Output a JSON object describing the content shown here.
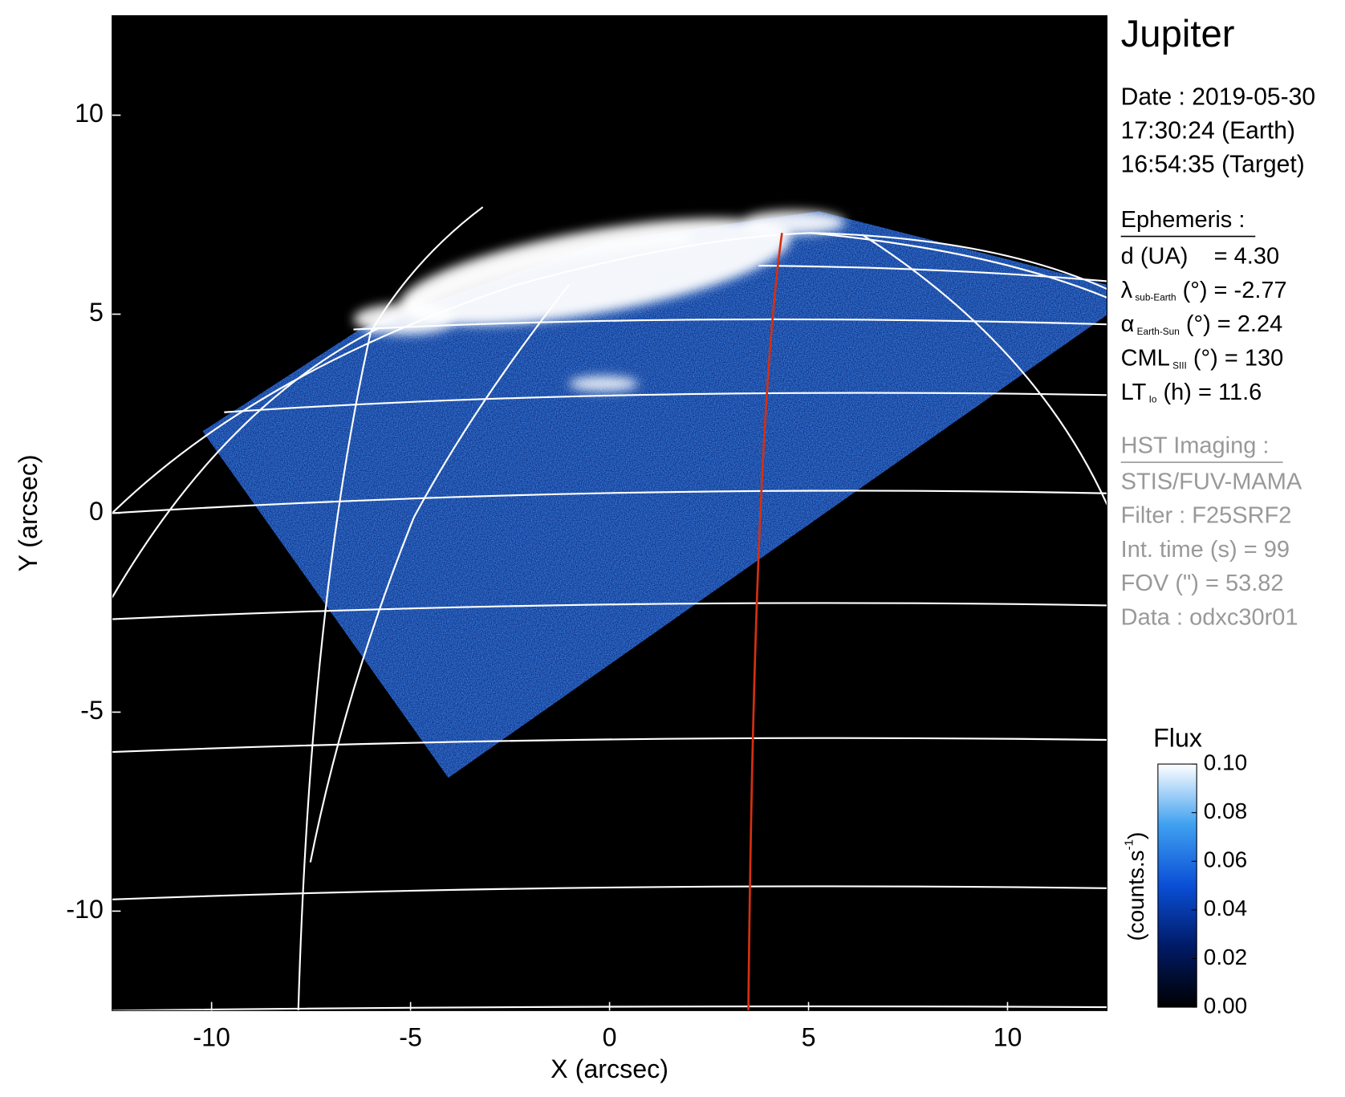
{
  "chart_data": {
    "type": "image",
    "title": "Jupiter",
    "xlabel": "X (arcsec)",
    "ylabel": "Y (arcsec)",
    "xlim": [
      -12.5,
      12.5
    ],
    "ylim": [
      -12.5,
      12.5
    ],
    "xticks": [
      -10,
      -5,
      0,
      5,
      10
    ],
    "yticks": [
      -10,
      -5,
      0,
      5,
      10
    ],
    "colorbar": {
      "title": "Flux",
      "label": "(counts.s",
      "label_sup": "-1",
      "label_end": ")",
      "lim": [
        0,
        0.1
      ],
      "ticks": [
        {
          "value": 0,
          "label": "0.00"
        },
        {
          "value": 0.02,
          "label": "0.02"
        },
        {
          "value": 0.04,
          "label": "0.04"
        },
        {
          "value": 0.06,
          "label": "0.06"
        },
        {
          "value": 0.08,
          "label": "0.08"
        },
        {
          "value": 0.1,
          "label": "0.10"
        }
      ],
      "colors": [
        "#000000",
        "#001a66",
        "#0a4fd6",
        "#3fa0f0",
        "#ffffff"
      ]
    },
    "info": {
      "date": [
        "Date : 2019-05-30",
        "17:30:24 (Earth)",
        "16:54:35 (Target)"
      ],
      "ephemeris_title": "Ephemeris :",
      "ephemeris": [
        {
          "main": "d (UA)    = 4.30"
        },
        {
          "main": "λ",
          "sub": "sub-Earth",
          "rest": " (°) = -2.77"
        },
        {
          "main": "α",
          "sub": "Earth-Sun",
          "rest": " (°) = 2.24"
        },
        {
          "main": "CML",
          "sub": "SIII",
          "rest": " (°) = 130"
        },
        {
          "main": "LT",
          "sub": "Io",
          "rest": " (h) = 11.6"
        }
      ],
      "imaging_title": "HST Imaging :",
      "imaging": [
        "STIS/FUV-MAMA",
        "Filter : F25SRF2",
        "Int. time (s) = 99",
        "FOV (\") = 53.82",
        "Data : odxc30r01"
      ]
    }
  }
}
